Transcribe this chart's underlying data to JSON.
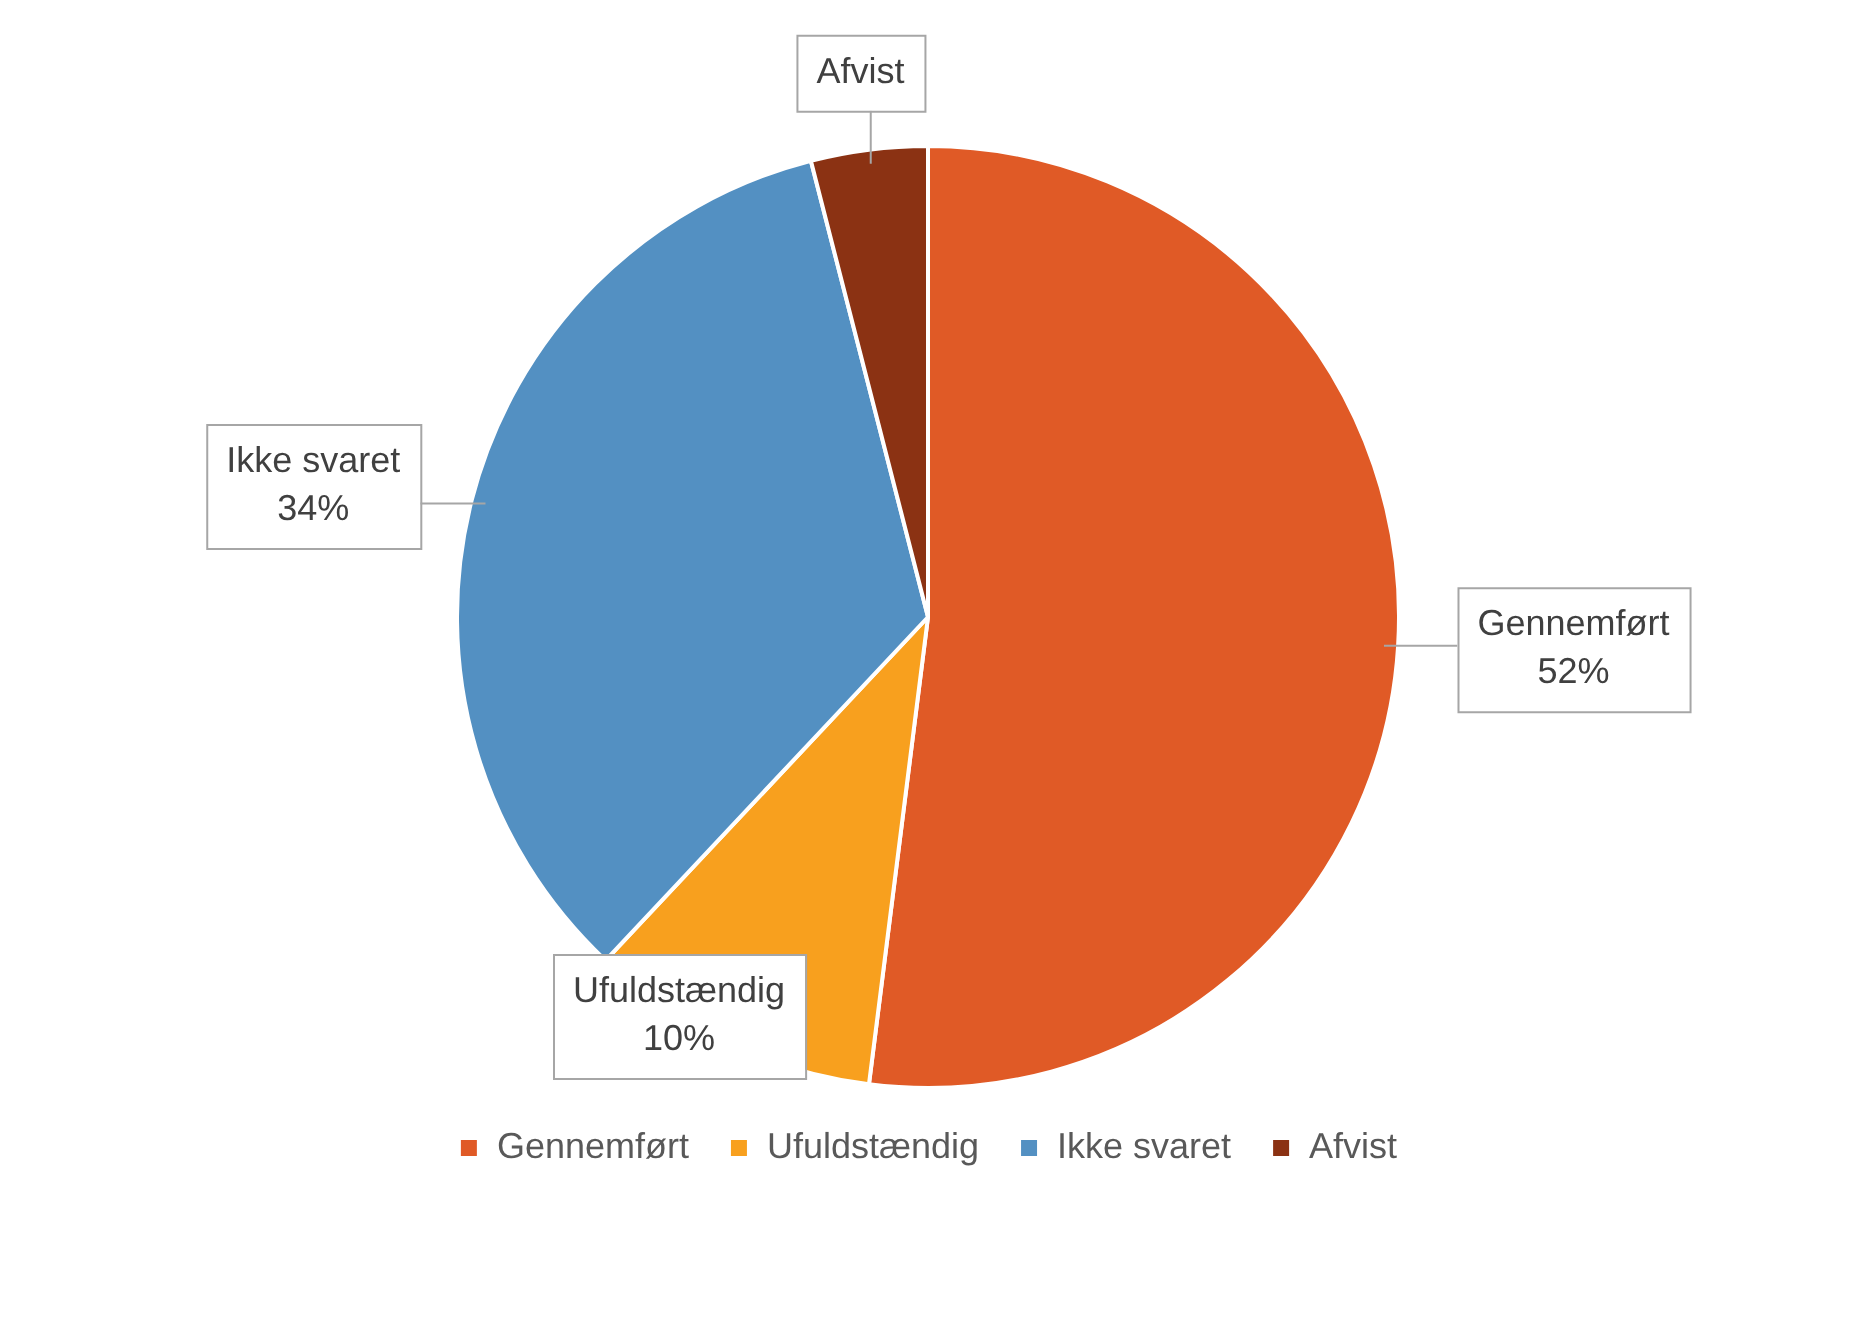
{
  "chart_data": {
    "type": "pie",
    "categories": [
      "Gennemført",
      "Ufuldstændig",
      "Ikke svaret",
      "Afvist"
    ],
    "values": [
      52,
      10,
      34,
      4
    ],
    "colors": [
      "#e05a26",
      "#f8a01e",
      "#5390c2",
      "#8b3213"
    ],
    "value_labels": [
      "52%",
      "10%",
      "34%",
      null
    ],
    "legend": "bottom"
  }
}
